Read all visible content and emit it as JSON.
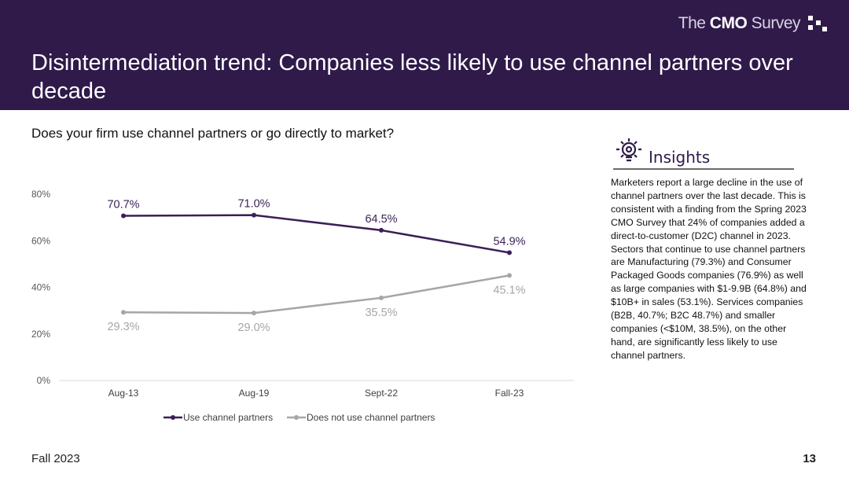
{
  "header": {
    "logo_prefix": "The",
    "logo_bold": "CMO",
    "logo_suffix": "Survey",
    "title": "Disintermediation trend: Companies less likely to use channel partners over decade"
  },
  "question": "Does your firm use channel partners or go directly to market?",
  "insights": {
    "heading": "Insights",
    "icon": "lightbulb-icon",
    "text": "Marketers report a large decline in the use of channel partners over the last decade. This is consistent with a finding from the Spring 2023 CMO Survey that 24% of companies added a direct-to-customer (D2C) channel in 2023. Sectors that continue to use channel partners are Manufacturing (79.3%) and Consumer Packaged Goods companies (76.9%) as well as large companies with $1-9.9B (64.8%) and $10B+ in sales (53.1%). Services companies (B2B, 40.7%; B2C 48.7%) and smaller companies (<$10M, 38.5%), on the other hand, are significantly less likely to use channel partners."
  },
  "footer": {
    "label": "Fall 2023",
    "page": "13"
  },
  "colors": {
    "brand": "#2f1a4a",
    "series1": "#3b1f57",
    "series2": "#a6a6a6"
  },
  "chart_data": {
    "type": "line",
    "categories": [
      "Aug-13",
      "Aug-19",
      "Sept-22",
      "Fall-23"
    ],
    "series": [
      {
        "name": "Use channel partners",
        "values": [
          70.7,
          71.0,
          64.5,
          54.9
        ],
        "labels": [
          "70.7%",
          "71.0%",
          "64.5%",
          "54.9%"
        ]
      },
      {
        "name": "Does not use channel partners",
        "values": [
          29.3,
          29.0,
          35.5,
          45.1
        ],
        "labels": [
          "29.3%",
          "29.0%",
          "35.5%",
          "45.1%"
        ]
      }
    ],
    "yticks": [
      "0%",
      "20%",
      "40%",
      "60%",
      "80%"
    ],
    "ylim": [
      0,
      80
    ],
    "legend": "bottom"
  }
}
